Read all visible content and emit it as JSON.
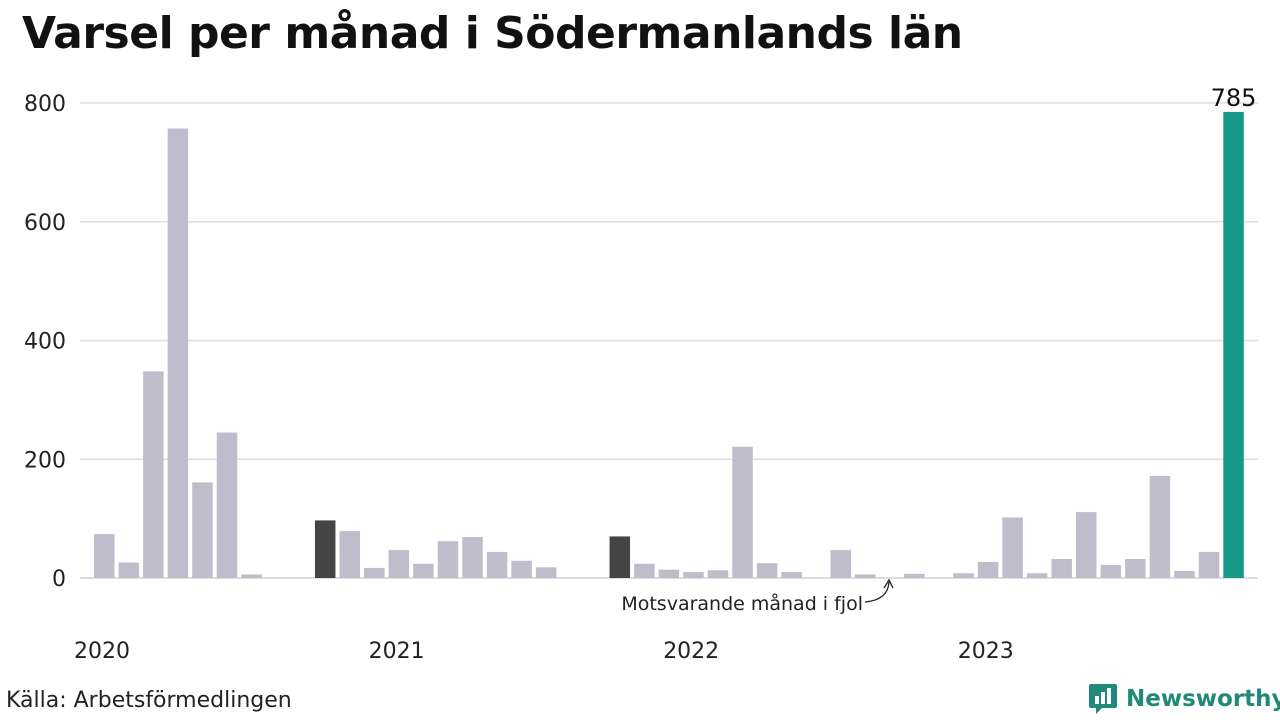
{
  "title": "Varsel per månad i Södermanlands län",
  "source": "Källa: Arbetsförmedlingen",
  "brand": {
    "name": "Newsworthy",
    "icon": "newsworthy-logo-icon",
    "color": "#20897a"
  },
  "annotation": "Motsvarande månad i fjol",
  "colors": {
    "default": "#bfbdcc",
    "previous_year": "#444444",
    "current": "#17998a",
    "grid": "#dddddd"
  },
  "chart_data": {
    "type": "bar",
    "title": "Varsel per månad i Södermanlands län",
    "xlabel": "",
    "ylabel": "",
    "ylim": [
      0,
      800
    ],
    "yticks": [
      0,
      200,
      400,
      600,
      800
    ],
    "grid": true,
    "year_labels": [
      {
        "label": "2020",
        "index": 0
      },
      {
        "label": "2021",
        "index": 12
      },
      {
        "label": "2022",
        "index": 24
      },
      {
        "label": "2023",
        "index": 36
      }
    ],
    "values": [
      74,
      26,
      348,
      757,
      161,
      245,
      6,
      0,
      0,
      97,
      79,
      17,
      47,
      24,
      62,
      69,
      44,
      29,
      18,
      0,
      0,
      70,
      24,
      14,
      10,
      13,
      221,
      25,
      10,
      0,
      47,
      6,
      0,
      7,
      0,
      8,
      27,
      102,
      8,
      32,
      111,
      22,
      32,
      172,
      12,
      44,
      785
    ],
    "highlight": {
      "previous_year": [
        9,
        21
      ],
      "current": 46
    },
    "value_labels": [
      {
        "index": 46,
        "text": "785"
      }
    ]
  }
}
